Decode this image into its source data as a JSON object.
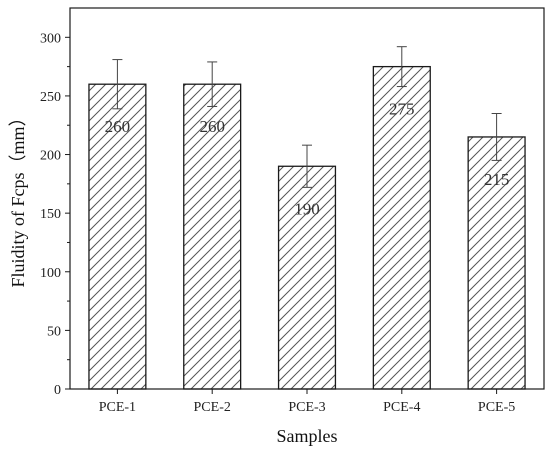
{
  "chart_data": {
    "type": "bar",
    "categories": [
      "PCE-1",
      "PCE-2",
      "PCE-3",
      "PCE-4",
      "PCE-5"
    ],
    "values": [
      260,
      260,
      190,
      275,
      215
    ],
    "error": [
      21,
      19,
      18,
      17,
      20
    ],
    "data_labels": [
      "260",
      "260",
      "190",
      "275",
      "215"
    ],
    "title": "",
    "xlabel": "Samples",
    "ylabel": "Fluidity of Fcps（mm）",
    "ylim": [
      0,
      325
    ],
    "yticks": [
      0,
      50,
      100,
      150,
      200,
      250,
      300
    ],
    "grid": false,
    "bar_fill": "hatched",
    "colors": {
      "bar_edge": "#1a1a1a",
      "hatch": "#555555",
      "axis": "#1a1a1a"
    }
  }
}
